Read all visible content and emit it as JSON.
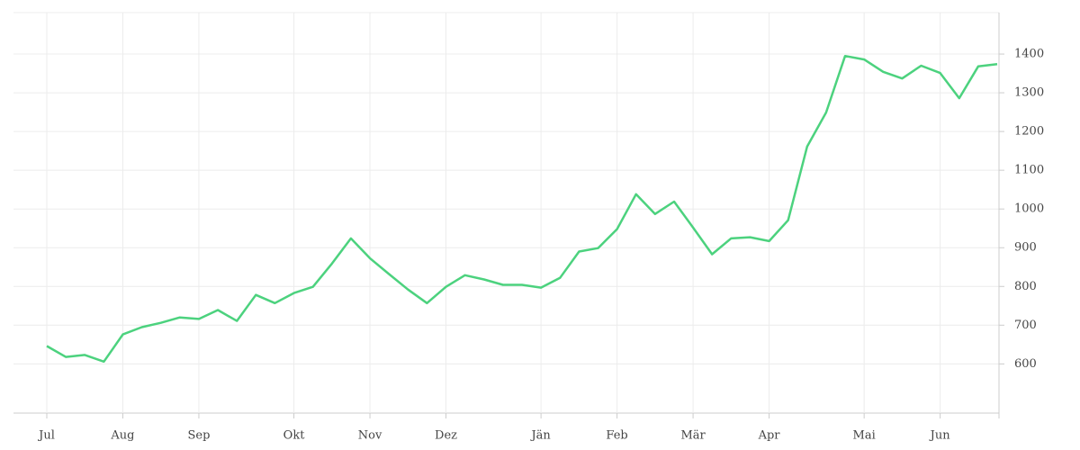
{
  "chart_data": {
    "type": "line",
    "categories": [
      "Jul",
      null,
      null,
      null,
      "Aug",
      null,
      null,
      null,
      "Sep",
      null,
      null,
      null,
      null,
      "Okt",
      null,
      null,
      null,
      "Nov",
      null,
      null,
      null,
      "Dez",
      null,
      null,
      null,
      null,
      "Jän",
      null,
      null,
      null,
      "Feb",
      null,
      null,
      null,
      "Mär",
      null,
      null,
      null,
      "Apr",
      null,
      null,
      null,
      null,
      "Mai",
      null,
      null,
      null,
      "Jun",
      null,
      null,
      null
    ],
    "series": [
      {
        "color": "#4cd27e",
        "values": [
          646,
          618,
          623,
          606,
          676,
          695,
          706,
          720,
          716,
          739,
          711,
          778,
          757,
          783,
          799,
          859,
          924,
          873,
          832,
          792,
          757,
          799,
          829,
          818,
          804,
          804,
          797,
          822,
          890,
          899,
          948,
          1038,
          987,
          1019,
          952,
          883,
          924,
          927,
          917,
          971,
          1161,
          1249,
          1395,
          1386,
          1354,
          1337,
          1370,
          1351,
          1286,
          1368,
          1374
        ]
      }
    ],
    "ylim": [
      473,
      1507
    ],
    "yticks": [
      600,
      700,
      800,
      900,
      1000,
      1100,
      1200,
      1300,
      1400
    ],
    "grid": true
  }
}
